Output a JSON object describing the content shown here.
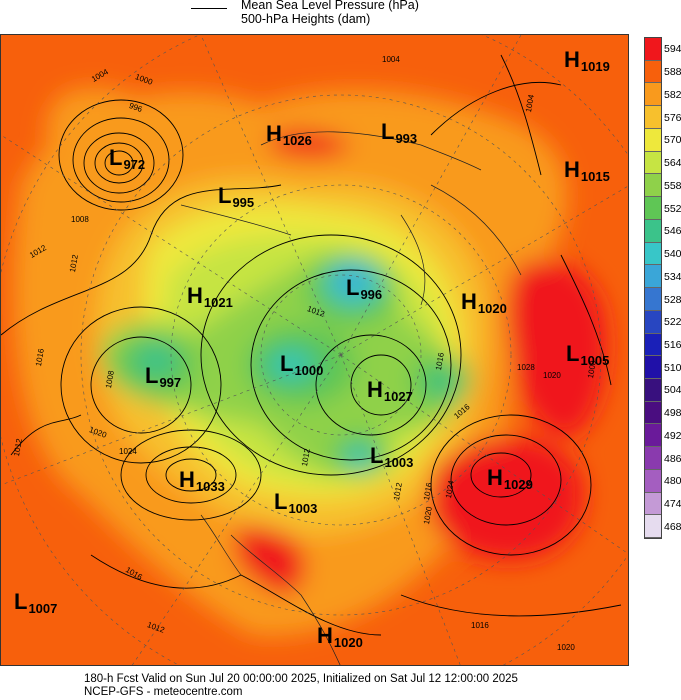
{
  "legend": {
    "mslp_label": "Mean Sea Level Pressure (hPa)",
    "heights_label": "500-hPa Heights (dam)"
  },
  "colorbar": {
    "levels": [
      "594",
      "588",
      "582",
      "576",
      "570",
      "564",
      "558",
      "552",
      "546",
      "540",
      "534",
      "528",
      "522",
      "516",
      "510",
      "504",
      "498",
      "492",
      "486",
      "480",
      "474",
      "468"
    ],
    "colors": [
      "#f0171c",
      "#f7600c",
      "#f99a1d",
      "#f7c02d",
      "#eee83c",
      "#c6e443",
      "#8fd14a",
      "#5fc655",
      "#3bc38a",
      "#38c6c8",
      "#3aa6d8",
      "#3676d0",
      "#2846c1",
      "#1a20b8",
      "#2010a8",
      "#38107e",
      "#4a0d80",
      "#6a1a9a",
      "#8a3aae",
      "#a45ec0",
      "#c49ad6",
      "#e6dcef"
    ]
  },
  "pressure_systems": [
    {
      "type": "H",
      "value": "1019"
    },
    {
      "type": "H",
      "value": "1026"
    },
    {
      "type": "L",
      "value": "993"
    },
    {
      "type": "L",
      "value": "972"
    },
    {
      "type": "H",
      "value": "1015"
    },
    {
      "type": "L",
      "value": "995"
    },
    {
      "type": "L",
      "value": "996"
    },
    {
      "type": "H",
      "value": "1021"
    },
    {
      "type": "H",
      "value": "1020"
    },
    {
      "type": "L",
      "value": "1005"
    },
    {
      "type": "L",
      "value": "997"
    },
    {
      "type": "L",
      "value": "1000"
    },
    {
      "type": "H",
      "value": "1027"
    },
    {
      "type": "L",
      "value": "1003"
    },
    {
      "type": "H",
      "value": "1033"
    },
    {
      "type": "H",
      "value": "1029"
    },
    {
      "type": "L",
      "value": "1003"
    },
    {
      "type": "L",
      "value": "1007"
    },
    {
      "type": "H",
      "value": "1020"
    }
  ],
  "isobar_labels": [
    "1004",
    "1000",
    "996",
    "1004",
    "1008",
    "1012",
    "1012",
    "1012",
    "1016",
    "1008",
    "1020",
    "1024",
    "1012",
    "1012",
    "1016",
    "1016",
    "1024",
    "1020",
    "1028",
    "1020",
    "1016",
    "1016",
    "1012",
    "1012",
    "1016",
    "1020",
    "1004",
    "1008"
  ],
  "footer": {
    "line1": "180-h Fcst Valid on Sun Jul 20 00:00:00 2025, Initialized on Sat Jul 12 12:00:00 2025",
    "line2": "NCEP-GFS  - meteocentre.com"
  }
}
